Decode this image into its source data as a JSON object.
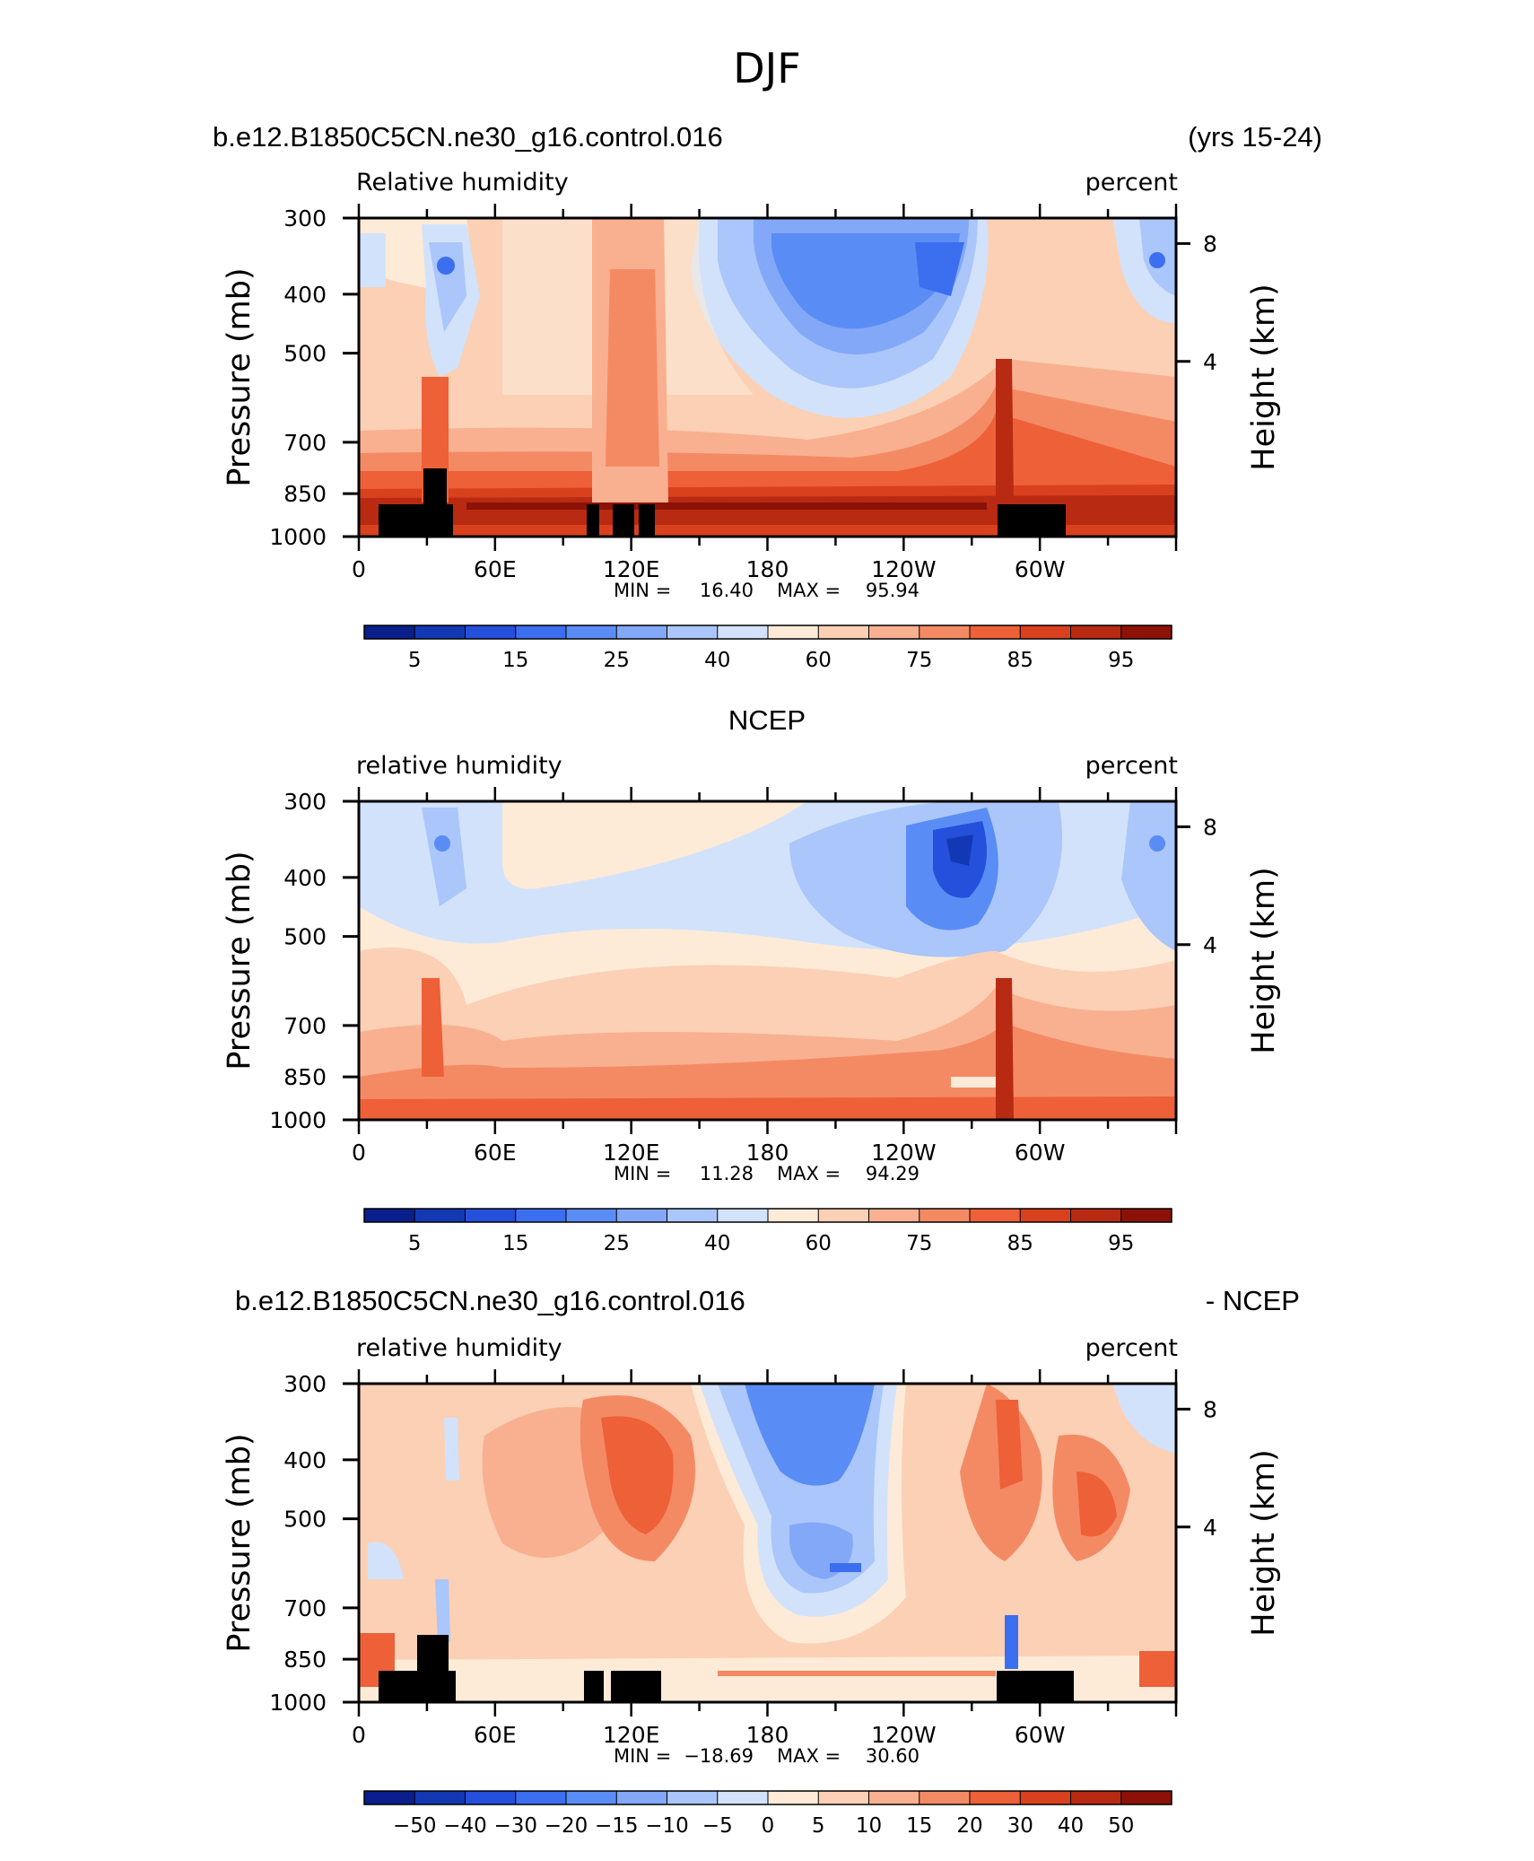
{
  "figure_title": "DJF",
  "header_top": {
    "left": "b.e12.B1850C5CN.ne30_g16.control.016",
    "right": "(yrs 15-24)"
  },
  "header_mid": {
    "center": "NCEP"
  },
  "header_bottom": {
    "left": "b.e12.B1850C5CN.ne30_g16.control.016",
    "right": "- NCEP"
  },
  "chart_data": [
    {
      "type": "heatmap",
      "title": "b.e12.B1850C5CN.ne30_g16.control.016",
      "left_label": "Relative humidity",
      "units_label": "percent",
      "ylabel": "Pressure (mb)",
      "ylabel_right": "Height (km)",
      "yticks": [
        "300",
        "400",
        "500",
        "700",
        "850",
        "1000"
      ],
      "yticks_right": [
        "8",
        "4"
      ],
      "xticks": [
        "0",
        "60E",
        "120E",
        "180",
        "120W",
        "60W"
      ],
      "stats": {
        "min_label": "MIN =",
        "min": "16.40",
        "max_label": "MAX =",
        "max": "95.94"
      },
      "colorbar_labels": [
        "5",
        "15",
        "25",
        "40",
        "60",
        "75",
        "85",
        "95"
      ]
    },
    {
      "type": "heatmap",
      "title": "NCEP",
      "left_label": "relative humidity",
      "units_label": "percent",
      "ylabel": "Pressure (mb)",
      "ylabel_right": "Height (km)",
      "yticks": [
        "300",
        "400",
        "500",
        "700",
        "850",
        "1000"
      ],
      "yticks_right": [
        "8",
        "4"
      ],
      "xticks": [
        "0",
        "60E",
        "120E",
        "180",
        "120W",
        "60W"
      ],
      "stats": {
        "min_label": "MIN =",
        "min": "11.28",
        "max_label": "MAX =",
        "max": "94.29"
      },
      "colorbar_labels": [
        "5",
        "15",
        "25",
        "40",
        "60",
        "75",
        "85",
        "95"
      ]
    },
    {
      "type": "heatmap",
      "title": "b.e12.B1850C5CN.ne30_g16.control.016 - NCEP",
      "left_label": "relative humidity",
      "units_label": "percent",
      "ylabel": "Pressure (mb)",
      "ylabel_right": "Height (km)",
      "yticks": [
        "300",
        "400",
        "500",
        "700",
        "850",
        "1000"
      ],
      "yticks_right": [
        "8",
        "4"
      ],
      "xticks": [
        "0",
        "60E",
        "120E",
        "180",
        "120W",
        "60W"
      ],
      "stats": {
        "min_label": "MIN =",
        "min": "−18.69",
        "max_label": "MAX =",
        "max": "30.60"
      },
      "colorbar_labels": [
        "−50",
        "−40",
        "−30",
        "−20",
        "−15",
        "−10",
        "−5",
        "0",
        "5",
        "10",
        "15",
        "20",
        "30",
        "40",
        "50"
      ]
    }
  ],
  "colors": {
    "scale": [
      "#0a1e8c",
      "#1238b4",
      "#2450dc",
      "#3c6ef0",
      "#5a8cf5",
      "#82a8f7",
      "#aac6fa",
      "#d2e2fb",
      "#fdebd8",
      "#fbd0b4",
      "#f8b090",
      "#f48a64",
      "#ee6038",
      "#d8401e",
      "#b82a12",
      "#8c1208"
    ]
  }
}
